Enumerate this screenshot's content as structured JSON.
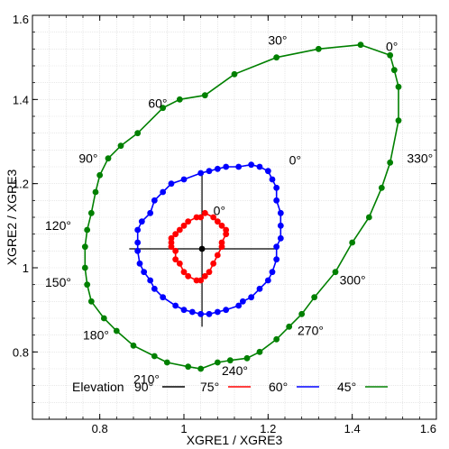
{
  "chart_data": {
    "type": "scatter",
    "title": "",
    "xlabel": "XGRE1 / XGRE3",
    "ylabel": "XGRE2 / XGRE3",
    "xlim": [
      0.64,
      1.6
    ],
    "ylim": [
      0.64,
      1.6
    ],
    "xticks": [
      0.8,
      1,
      1.2,
      1.4,
      1.6
    ],
    "yticks": [
      0.8,
      1,
      1.2,
      1.4,
      1.6
    ],
    "x_tick_labels": [
      "0.8",
      "1",
      "1.2",
      "1.4",
      "1.6"
    ],
    "y_tick_labels": [
      "0.8",
      "1",
      "1.2",
      "1.4",
      "1.6"
    ],
    "grid": true,
    "legend": {
      "position": "bottom",
      "prefix": "Elevation",
      "entries": [
        "90°",
        "75°",
        "60°",
        "45°"
      ]
    },
    "series": [
      {
        "name": "90°",
        "color": "#000000",
        "marker": "none",
        "points": [
          [
            1.043,
            1.045
          ]
        ],
        "crosshair": {
          "x": [
            0.87,
            1.22
          ],
          "y": [
            0.86,
            1.23
          ]
        }
      },
      {
        "name": "75°",
        "color": "#ff0000",
        "marker": "circle",
        "points": [
          [
            1.07,
            1.12
          ],
          [
            1.08,
            1.11
          ],
          [
            1.09,
            1.1
          ],
          [
            1.1,
            1.09
          ],
          [
            1.1,
            1.08
          ],
          [
            1.09,
            1.06
          ],
          [
            1.09,
            1.05
          ],
          [
            1.08,
            1.03
          ],
          [
            1.07,
            1.01
          ],
          [
            1.06,
            0.99
          ],
          [
            1.05,
            0.98
          ],
          [
            1.04,
            0.97
          ],
          [
            1.03,
            0.97
          ],
          [
            1.01,
            0.98
          ],
          [
            1.0,
            0.99
          ],
          [
            0.99,
            1.01
          ],
          [
            0.98,
            1.02
          ],
          [
            0.98,
            1.04
          ],
          [
            0.97,
            1.05
          ],
          [
            0.97,
            1.06
          ],
          [
            0.97,
            1.07
          ],
          [
            0.98,
            1.08
          ],
          [
            0.99,
            1.09
          ],
          [
            1.0,
            1.1
          ],
          [
            1.01,
            1.11
          ],
          [
            1.03,
            1.12
          ],
          [
            1.04,
            1.12
          ],
          [
            1.05,
            1.13
          ]
        ]
      },
      {
        "name": "60°",
        "color": "#0000ff",
        "marker": "circle",
        "points": [
          [
            1.16,
            1.245
          ],
          [
            1.18,
            1.24
          ],
          [
            1.2,
            1.23
          ],
          [
            1.21,
            1.21
          ],
          [
            1.22,
            1.19
          ],
          [
            1.22,
            1.16
          ],
          [
            1.23,
            1.13
          ],
          [
            1.23,
            1.1
          ],
          [
            1.23,
            1.07
          ],
          [
            1.22,
            1.05
          ],
          [
            1.22,
            1.02
          ],
          [
            1.21,
            0.99
          ],
          [
            1.2,
            0.97
          ],
          [
            1.18,
            0.95
          ],
          [
            1.16,
            0.93
          ],
          [
            1.14,
            0.92
          ],
          [
            1.13,
            0.91
          ],
          [
            1.1,
            0.9
          ],
          [
            1.08,
            0.895
          ],
          [
            1.06,
            0.89
          ],
          [
            1.04,
            0.89
          ],
          [
            1.02,
            0.895
          ],
          [
            1.0,
            0.9
          ],
          [
            0.98,
            0.91
          ],
          [
            0.95,
            0.93
          ],
          [
            0.93,
            0.95
          ],
          [
            0.92,
            0.97
          ],
          [
            0.905,
            0.99
          ],
          [
            0.895,
            1.01
          ],
          [
            0.89,
            1.04
          ],
          [
            0.89,
            1.06
          ],
          [
            0.89,
            1.09
          ],
          [
            0.9,
            1.11
          ],
          [
            0.92,
            1.13
          ],
          [
            0.93,
            1.16
          ],
          [
            0.95,
            1.18
          ],
          [
            0.97,
            1.2
          ],
          [
            1.0,
            1.21
          ],
          [
            1.04,
            1.225
          ],
          [
            1.06,
            1.23
          ],
          [
            1.08,
            1.235
          ],
          [
            1.1,
            1.24
          ],
          [
            1.13,
            1.24
          ]
        ]
      },
      {
        "name": "45°",
        "color": "#008000",
        "marker": "circle",
        "points": [
          [
            1.42,
            1.53
          ],
          [
            1.49,
            1.505
          ],
          [
            1.5,
            1.47
          ],
          [
            1.51,
            1.43
          ],
          [
            1.51,
            1.35
          ],
          [
            1.49,
            1.25
          ],
          [
            1.47,
            1.19
          ],
          [
            1.44,
            1.12
          ],
          [
            1.4,
            1.06
          ],
          [
            1.36,
            0.99
          ],
          [
            1.31,
            0.93
          ],
          [
            1.28,
            0.89
          ],
          [
            1.25,
            0.86
          ],
          [
            1.22,
            0.83
          ],
          [
            1.18,
            0.8
          ],
          [
            1.15,
            0.785
          ],
          [
            1.11,
            0.78
          ],
          [
            1.08,
            0.775
          ],
          [
            1.04,
            0.76
          ],
          [
            1.01,
            0.765
          ],
          [
            0.96,
            0.775
          ],
          [
            0.93,
            0.79
          ],
          [
            0.88,
            0.815
          ],
          [
            0.84,
            0.85
          ],
          [
            0.81,
            0.88
          ],
          [
            0.78,
            0.92
          ],
          [
            0.77,
            0.96
          ],
          [
            0.765,
            1.0
          ],
          [
            0.765,
            1.05
          ],
          [
            0.77,
            1.09
          ],
          [
            0.78,
            1.13
          ],
          [
            0.79,
            1.18
          ],
          [
            0.8,
            1.22
          ],
          [
            0.82,
            1.26
          ],
          [
            0.85,
            1.29
          ],
          [
            0.89,
            1.32
          ],
          [
            0.95,
            1.38
          ],
          [
            0.99,
            1.4
          ],
          [
            1.05,
            1.41
          ],
          [
            1.12,
            1.46
          ],
          [
            1.22,
            1.5
          ],
          [
            1.32,
            1.52
          ]
        ]
      }
    ],
    "annotations": [
      {
        "text": "0°",
        "x": 1.07,
        "y": 1.125
      },
      {
        "text": "0°",
        "x": 1.25,
        "y": 1.245
      },
      {
        "text": "30°",
        "x": 1.2,
        "y": 1.53
      },
      {
        "text": "0°",
        "x": 1.48,
        "y": 1.515
      },
      {
        "text": "60°",
        "x": 0.915,
        "y": 1.38
      },
      {
        "text": "330°",
        "x": 1.53,
        "y": 1.25
      },
      {
        "text": "90°",
        "x": 0.75,
        "y": 1.25
      },
      {
        "text": "120°",
        "x": 0.67,
        "y": 1.09
      },
      {
        "text": "300°",
        "x": 1.37,
        "y": 0.96
      },
      {
        "text": "150°",
        "x": 0.67,
        "y": 0.955
      },
      {
        "text": "270°",
        "x": 1.27,
        "y": 0.84
      },
      {
        "text": "180°",
        "x": 0.76,
        "y": 0.83
      },
      {
        "text": "240°",
        "x": 1.09,
        "y": 0.745
      },
      {
        "text": "210°",
        "x": 0.88,
        "y": 0.725
      }
    ]
  }
}
